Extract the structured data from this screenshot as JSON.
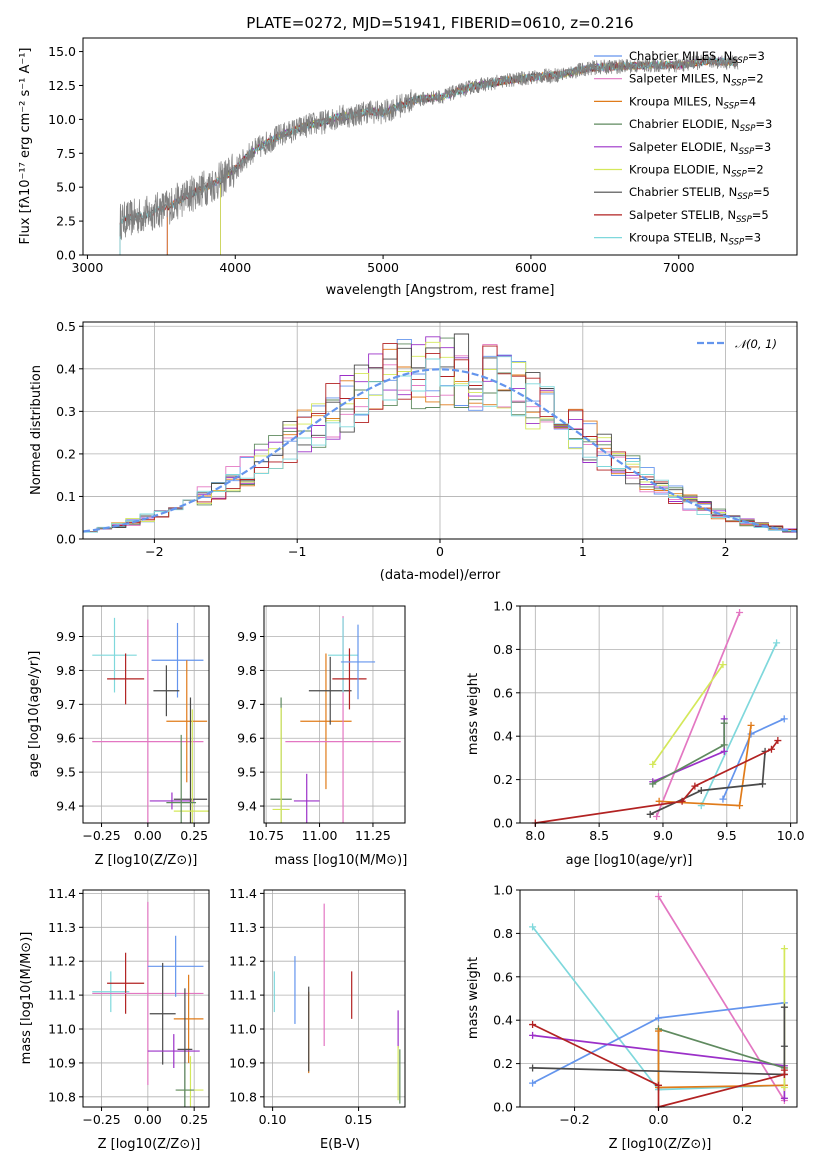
{
  "title": "PLATE=0272, MJD=51941, FIBERID=0610, z=0.216",
  "colors": {
    "grid": "#b0b0b0",
    "spectrum": "#7f7f7f",
    "normal_curve": "#6495ED"
  },
  "chart_data": [
    {
      "id": "spectrum",
      "type": "line",
      "title": "PLATE=0272, MJD=51941, FIBERID=0610, z=0.216",
      "xlabel": "wavelength [Angstrom, rest frame]",
      "ylabel": "Flux [fλ10⁻¹⁷ erg cm⁻² s⁻¹ A⁻¹]",
      "xlim": [
        2970,
        7800
      ],
      "ylim": [
        0,
        16
      ],
      "xticks": [
        3000,
        4000,
        5000,
        6000,
        7000
      ],
      "xtick_labels": [
        "3000",
        "4000",
        "5000",
        "6000",
        "7000"
      ],
      "yticks": [
        0,
        2.5,
        5,
        7.5,
        10,
        12.5,
        15
      ],
      "ytick_labels": [
        "0.0",
        "2.5",
        "5.0",
        "7.5",
        "10.0",
        "12.5",
        "15.0"
      ],
      "legend_position": "upper right",
      "data_range": [
        3220,
        7400
      ],
      "anchor_points": {
        "x": [
          3220,
          3400,
          3550,
          3700,
          3800,
          3900,
          4000,
          4100,
          4200,
          4300,
          4400,
          4500,
          4600,
          4700,
          4800,
          4900,
          5000,
          5200,
          5400,
          5600,
          5800,
          6000,
          6200,
          6400,
          6600,
          6800,
          7000,
          7200,
          7400
        ],
        "y": [
          2.5,
          3.0,
          3.6,
          4.5,
          5.0,
          5.5,
          6.3,
          7.5,
          8.2,
          8.8,
          9.2,
          9.6,
          9.8,
          10.2,
          10.3,
          10.6,
          10.5,
          11.4,
          11.7,
          12.4,
          12.8,
          13.1,
          13.3,
          13.8,
          13.9,
          14.0,
          14.0,
          14.3,
          14.2
        ]
      },
      "series": [
        {
          "name": "Chabrier MILES, N_SSP=3",
          "color": "#6495ED",
          "start": 3540
        },
        {
          "name": "Salpeter MILES, N_SSP=2",
          "color": "#E377C2",
          "start": 3540
        },
        {
          "name": "Kroupa MILES, N_SSP=4",
          "color": "#E07B1A",
          "start": 3540
        },
        {
          "name": "Chabrier ELODIE, N_SSP=3",
          "color": "#5F8A5F",
          "start": 3900
        },
        {
          "name": "Salpeter ELODIE, N_SSP=3",
          "color": "#9B30C8",
          "start": 3900
        },
        {
          "name": "Kroupa ELODIE, N_SSP=2",
          "color": "#D4E85A",
          "start": 3900
        },
        {
          "name": "Chabrier STELIB, N_SSP=5",
          "color": "#4A4A4A",
          "start": 3220
        },
        {
          "name": "Salpeter STELIB, N_SSP=5",
          "color": "#B22222",
          "start": 3220
        },
        {
          "name": "Kroupa STELIB, N_SSP=3",
          "color": "#7FD8DC",
          "start": 3220
        }
      ]
    },
    {
      "id": "residuals",
      "type": "line",
      "xlabel": "(data-model)/error",
      "ylabel": "Normed distribution",
      "xlim": [
        -2.5,
        2.5
      ],
      "ylim": [
        0,
        0.51
      ],
      "xticks": [
        -2,
        -1,
        0,
        1,
        2
      ],
      "xtick_labels": [
        "−2",
        "−1",
        "0",
        "1",
        "2"
      ],
      "yticks": [
        0,
        0.1,
        0.2,
        0.3,
        0.4,
        0.5
      ],
      "ytick_labels": [
        "0.0",
        "0.1",
        "0.2",
        "0.3",
        "0.4",
        "0.5"
      ],
      "legend": "𝒩(0, 1)",
      "legend_position": "upper right",
      "bin_width": 0.1
    },
    {
      "id": "z_vs_age",
      "type": "scatter",
      "xlabel": "Z [log10(Z/Z⊙)]",
      "ylabel": "age  [log10(age/yr)]",
      "xlim": [
        -0.35,
        0.33
      ],
      "ylim": [
        9.35,
        9.99
      ],
      "xticks": [
        -0.25,
        0,
        0.25
      ],
      "xtick_labels": [
        "−0.25",
        "0.00",
        "0.25"
      ],
      "yticks": [
        9.4,
        9.5,
        9.6,
        9.7,
        9.8,
        9.9
      ],
      "ytick_labels": [
        "9.4",
        "9.5",
        "9.6",
        "9.7",
        "9.8",
        "9.9"
      ],
      "points": [
        {
          "color": "#7FD8DC",
          "x": -0.18,
          "y": 9.845,
          "xerr": 0.12,
          "yerr": 0.11
        },
        {
          "color": "#B22222",
          "x": -0.12,
          "y": 9.775,
          "xerr": 0.1,
          "yerr": 0.075
        },
        {
          "color": "#E377C2",
          "x": 0.0,
          "y": 9.59,
          "xerr": 0.3,
          "yerr": 0.36
        },
        {
          "color": "#6495ED",
          "x": 0.16,
          "y": 9.83,
          "xerr": 0.14,
          "yerr": 0.11
        },
        {
          "color": "#4A4A4A",
          "x": 0.1,
          "y": 9.74,
          "xerr": 0.07,
          "yerr": 0.075
        },
        {
          "color": "#E07B1A",
          "x": 0.21,
          "y": 9.65,
          "xerr": 0.11,
          "yerr": 0.18
        },
        {
          "color": "#9B30C8",
          "x": 0.13,
          "y": 9.415,
          "xerr": 0.12,
          "yerr": 0.025
        },
        {
          "color": "#4A4A4A",
          "x": 0.23,
          "y": 9.42,
          "xerr": 0.09,
          "yerr": 0.3
        },
        {
          "color": "#D4E85A",
          "x": 0.24,
          "y": 9.385,
          "xerr": 0.1,
          "yerr": 0.3
        },
        {
          "color": "#5F8A5F",
          "x": 0.18,
          "y": 9.41,
          "xerr": 0.08,
          "yerr": 0.2
        }
      ]
    },
    {
      "id": "mass_vs_age",
      "type": "scatter",
      "xlabel": "mass [log10(M/M⊙)]",
      "ylabel": "",
      "xlim": [
        10.74,
        11.4
      ],
      "ylim": [
        9.35,
        9.99
      ],
      "xticks": [
        10.75,
        11.0,
        11.25
      ],
      "xtick_labels": [
        "10.75",
        "11.00",
        "11.25"
      ],
      "yticks": [
        9.4,
        9.5,
        9.6,
        9.7,
        9.8,
        9.9
      ],
      "ytick_labels": [
        "9.4",
        "9.5",
        "9.6",
        "9.7",
        "9.8",
        "9.9"
      ],
      "points": [
        {
          "color": "#5F8A5F",
          "x": 10.82,
          "y": 9.42,
          "xerr": 0.05,
          "yerr": 0.3
        },
        {
          "color": "#D4E85A",
          "x": 10.82,
          "y": 9.39,
          "xerr": 0.04,
          "yerr": 0.3
        },
        {
          "color": "#9B30C8",
          "x": 10.94,
          "y": 9.415,
          "xerr": 0.06,
          "yerr": 0.08
        },
        {
          "color": "#E07B1A",
          "x": 11.03,
          "y": 9.65,
          "xerr": 0.12,
          "yerr": 0.2
        },
        {
          "color": "#4A4A4A",
          "x": 11.05,
          "y": 9.74,
          "xerr": 0.1,
          "yerr": 0.1
        },
        {
          "color": "#E377C2",
          "x": 11.11,
          "y": 9.59,
          "xerr": 0.27,
          "yerr": 0.37
        },
        {
          "color": "#7FD8DC",
          "x": 11.11,
          "y": 9.845,
          "xerr": 0.07,
          "yerr": 0.11
        },
        {
          "color": "#B22222",
          "x": 11.14,
          "y": 9.775,
          "xerr": 0.08,
          "yerr": 0.09
        },
        {
          "color": "#6495ED",
          "x": 11.18,
          "y": 9.825,
          "xerr": 0.08,
          "yerr": 0.11
        }
      ]
    },
    {
      "id": "weight_vs_age",
      "type": "line",
      "xlabel": "age  [log10(age/yr)]",
      "ylabel": "mass weight",
      "xlim": [
        7.88,
        10.05
      ],
      "ylim": [
        0,
        1.0
      ],
      "xticks": [
        8.0,
        8.5,
        9.0,
        9.5,
        10.0
      ],
      "xtick_labels": [
        "8.0",
        "8.5",
        "9.0",
        "9.5",
        "10.0"
      ],
      "yticks": [
        0,
        0.2,
        0.4,
        0.6,
        0.8,
        1.0
      ],
      "ytick_labels": [
        "0.0",
        "0.2",
        "0.4",
        "0.6",
        "0.8",
        "1.0"
      ],
      "series": [
        {
          "color": "#E377C2",
          "x": [
            8.95,
            9.6
          ],
          "y": [
            0.03,
            0.97
          ]
        },
        {
          "color": "#7FD8DC",
          "x": [
            9.3,
            9.89
          ],
          "y": [
            0.08,
            0.83
          ]
        },
        {
          "color": "#D4E85A",
          "x": [
            8.92,
            9.47
          ],
          "y": [
            0.27,
            0.73
          ]
        },
        {
          "color": "#6495ED",
          "x": [
            9.47,
            9.69,
            9.95
          ],
          "y": [
            0.11,
            0.41,
            0.48
          ]
        },
        {
          "color": "#9B30C8",
          "x": [
            8.92,
            9.48,
            9.48
          ],
          "y": [
            0.19,
            0.33,
            0.48
          ]
        },
        {
          "color": "#5F8A5F",
          "x": [
            8.92,
            9.48,
            9.48
          ],
          "y": [
            0.18,
            0.36,
            0.46
          ]
        },
        {
          "color": "#E07B1A",
          "x": [
            8.97,
            9.6,
            9.69
          ],
          "y": [
            0.1,
            0.08,
            0.45
          ]
        },
        {
          "color": "#4A4A4A",
          "x": [
            8.9,
            9.3,
            9.78,
            9.8
          ],
          "y": [
            0.04,
            0.15,
            0.18,
            0.33
          ]
        },
        {
          "color": "#B22222",
          "x": [
            8.0,
            9.15,
            9.25,
            9.85,
            9.9
          ],
          "y": [
            0.0,
            0.1,
            0.17,
            0.34,
            0.38
          ]
        }
      ]
    },
    {
      "id": "z_vs_mass",
      "type": "scatter",
      "xlabel": "Z [log10(Z/Z⊙)]",
      "ylabel": "mass [log10(M/M⊙)]",
      "xlim": [
        -0.35,
        0.33
      ],
      "ylim": [
        10.77,
        11.41
      ],
      "xticks": [
        -0.25,
        0,
        0.25
      ],
      "xtick_labels": [
        "−0.25",
        "0.00",
        "0.25"
      ],
      "yticks": [
        10.8,
        10.9,
        11.0,
        11.1,
        11.2,
        11.3,
        11.4
      ],
      "ytick_labels": [
        "10.8",
        "10.9",
        "11.0",
        "11.1",
        "11.2",
        "11.3",
        "11.4"
      ],
      "points": [
        {
          "color": "#7FD8DC",
          "x": -0.2,
          "y": 11.11,
          "xerr": 0.1,
          "yerr": 0.06
        },
        {
          "color": "#B22222",
          "x": -0.12,
          "y": 11.135,
          "xerr": 0.1,
          "yerr": 0.09
        },
        {
          "color": "#E377C2",
          "x": 0.0,
          "y": 11.105,
          "xerr": 0.3,
          "yerr": 0.27
        },
        {
          "color": "#6495ED",
          "x": 0.15,
          "y": 11.185,
          "xerr": 0.15,
          "yerr": 0.09
        },
        {
          "color": "#4A4A4A",
          "x": 0.08,
          "y": 11.045,
          "xerr": 0.07,
          "yerr": 0.15
        },
        {
          "color": "#E07B1A",
          "x": 0.22,
          "y": 11.03,
          "xerr": 0.08,
          "yerr": 0.13
        },
        {
          "color": "#9B30C8",
          "x": 0.14,
          "y": 10.935,
          "xerr": 0.14,
          "yerr": 0.05
        },
        {
          "color": "#4A4A4A",
          "x": 0.2,
          "y": 10.94,
          "xerr": 0.04,
          "yerr": 0.18
        },
        {
          "color": "#D4E85A",
          "x": 0.23,
          "y": 10.82,
          "xerr": 0.07,
          "yerr": 0.1
        },
        {
          "color": "#5F8A5F",
          "x": 0.2,
          "y": 10.82,
          "xerr": 0.05,
          "yerr": 0.08
        }
      ]
    },
    {
      "id": "ebv_vs_mass",
      "type": "scatter",
      "xlabel": "E(B-V)",
      "ylabel": "",
      "xlim": [
        0.095,
        0.177
      ],
      "ylim": [
        10.77,
        11.41
      ],
      "xticks": [
        0.1,
        0.15
      ],
      "xtick_labels": [
        "0.10",
        "0.15"
      ],
      "yticks": [
        10.8,
        10.9,
        11.0,
        11.1,
        11.2,
        11.3,
        11.4
      ],
      "ytick_labels": [
        "10.8",
        "10.9",
        "11.0",
        "11.1",
        "11.2",
        "11.3",
        "11.4"
      ],
      "points": [
        {
          "color": "#7FD8DC",
          "x": 0.101,
          "y": 11.11,
          "xerr": 0,
          "yerr": 0.06
        },
        {
          "color": "#6495ED",
          "x": 0.113,
          "y": 11.115,
          "xerr": 0,
          "yerr": 0.1
        },
        {
          "color": "#E07B1A",
          "x": 0.121,
          "y": 10.99,
          "xerr": 0,
          "yerr": 0.12
        },
        {
          "color": "#4A4A4A",
          "x": 0.121,
          "y": 11.0,
          "xerr": 0,
          "yerr": 0.125
        },
        {
          "color": "#E377C2",
          "x": 0.13,
          "y": 11.16,
          "xerr": 0,
          "yerr": 0.21
        },
        {
          "color": "#B22222",
          "x": 0.146,
          "y": 11.1,
          "xerr": 0,
          "yerr": 0.07
        },
        {
          "color": "#9B30C8",
          "x": 0.173,
          "y": 11.0,
          "xerr": 0,
          "yerr": 0.055
        },
        {
          "color": "#D4E85A",
          "x": 0.173,
          "y": 10.87,
          "xerr": 0,
          "yerr": 0.08
        },
        {
          "color": "#5F8A5F",
          "x": 0.174,
          "y": 10.86,
          "xerr": 0,
          "yerr": 0.08
        }
      ]
    },
    {
      "id": "weight_vs_z",
      "type": "line",
      "xlabel": "Z [log10(Z/Z⊙)]",
      "ylabel": "mass weight",
      "xlim": [
        -0.33,
        0.33
      ],
      "ylim": [
        0,
        1.0
      ],
      "xticks": [
        -0.2,
        0.0,
        0.2
      ],
      "xtick_labels": [
        "−0.2",
        "0.0",
        "0.2"
      ],
      "yticks": [
        0,
        0.2,
        0.4,
        0.6,
        0.8,
        1.0
      ],
      "ytick_labels": [
        "0.0",
        "0.2",
        "0.4",
        "0.6",
        "0.8",
        "1.0"
      ],
      "series": [
        {
          "color": "#7FD8DC",
          "x": [
            -0.3,
            0.0,
            0.3
          ],
          "y": [
            0.83,
            0.08,
            0.1
          ]
        },
        {
          "color": "#E377C2",
          "x": [
            0.0,
            0.3
          ],
          "y": [
            0.97,
            0.03
          ]
        },
        {
          "color": "#6495ED",
          "x": [
            -0.3,
            0.0,
            0.3
          ],
          "y": [
            0.11,
            0.41,
            0.48
          ]
        },
        {
          "color": "#9B30C8",
          "x": [
            -0.3,
            0.3,
            0.3
          ],
          "y": [
            0.33,
            0.19,
            0.04
          ]
        },
        {
          "color": "#5F8A5F",
          "x": [
            0.0,
            0.0,
            0.3
          ],
          "y": [
            0.09,
            0.36,
            0.18
          ]
        },
        {
          "color": "#E07B1A",
          "x": [
            0.0,
            0.0,
            0.3
          ],
          "y": [
            0.35,
            0.09,
            0.1
          ]
        },
        {
          "color": "#D4E85A",
          "x": [
            0.3,
            0.3
          ],
          "y": [
            0.09,
            0.73
          ]
        },
        {
          "color": "#4A4A4A",
          "x": [
            -0.3,
            0.3,
            0.3,
            0.3
          ],
          "y": [
            0.18,
            0.15,
            0.28,
            0.46
          ]
        },
        {
          "color": "#B22222",
          "x": [
            -0.3,
            0.0,
            0.0,
            0.3,
            0.3
          ],
          "y": [
            0.38,
            0.1,
            0.0,
            0.15,
            0.17
          ]
        }
      ]
    }
  ]
}
